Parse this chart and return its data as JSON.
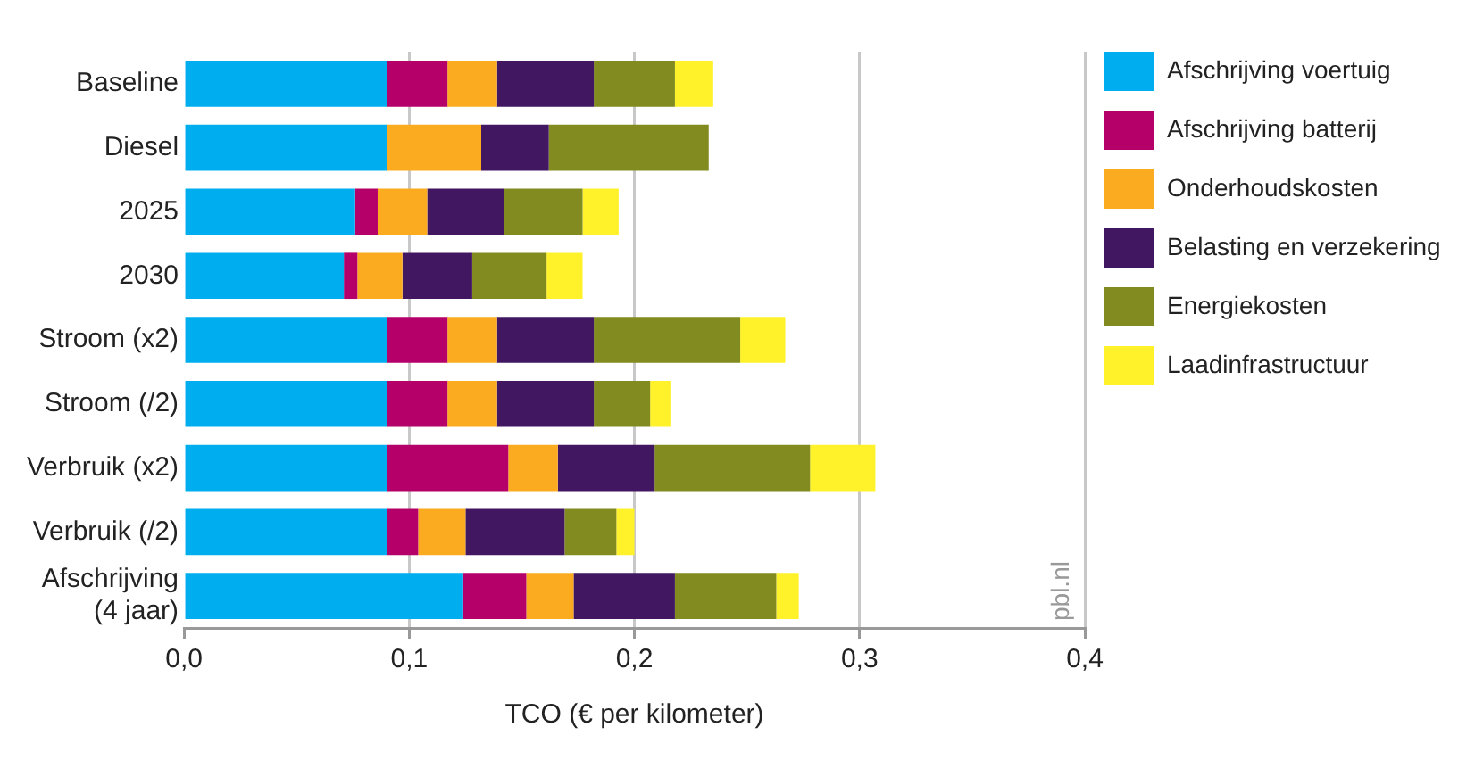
{
  "chart_data": {
    "type": "bar",
    "orientation": "horizontal",
    "stacked": true,
    "xlabel": "TCO (€ per kilometer)",
    "categories": [
      "Baseline",
      "Diesel",
      "2025",
      "2030",
      "Stroom (x2)",
      "Stroom (/2)",
      "Verbruik (x2)",
      "Verbruik (/2)",
      "Afschrijving (4 jaar)"
    ],
    "series": [
      {
        "name": "Afschrijving voertuig",
        "color": "#00aeef",
        "values": [
          0.09,
          0.09,
          0.076,
          0.071,
          0.09,
          0.09,
          0.09,
          0.09,
          0.124
        ]
      },
      {
        "name": "Afschrijving batterij",
        "color": "#b5006a",
        "values": [
          0.027,
          0,
          0.01,
          0.006,
          0.027,
          0.027,
          0.054,
          0.014,
          0.028
        ]
      },
      {
        "name": "Onderhoudskosten",
        "color": "#fbab20",
        "values": [
          0.022,
          0.042,
          0.022,
          0.02,
          0.022,
          0.022,
          0.022,
          0.021,
          0.021
        ]
      },
      {
        "name": "Belasting en verzekering",
        "color": "#421762",
        "values": [
          0.043,
          0.03,
          0.034,
          0.031,
          0.043,
          0.043,
          0.043,
          0.044,
          0.045
        ]
      },
      {
        "name": "Energiekosten",
        "color": "#818b1f",
        "values": [
          0.036,
          0.071,
          0.035,
          0.033,
          0.065,
          0.025,
          0.069,
          0.023,
          0.045
        ]
      },
      {
        "name": "Laadinfrastructuur",
        "color": "#fff22a",
        "values": [
          0.017,
          0,
          0.016,
          0.016,
          0.02,
          0.009,
          0.029,
          0.008,
          0.01
        ]
      }
    ],
    "xlim": [
      0,
      0.4
    ],
    "xticks": [
      {
        "value": 0,
        "label": "0,0"
      },
      {
        "value": 0.1,
        "label": "0,1"
      },
      {
        "value": 0.2,
        "label": "0,2"
      },
      {
        "value": 0.3,
        "label": "0,3"
      },
      {
        "value": 0.4,
        "label": "0,4"
      }
    ],
    "grid": "x",
    "legend": "right",
    "annotations": [
      "pbl.nl"
    ]
  }
}
